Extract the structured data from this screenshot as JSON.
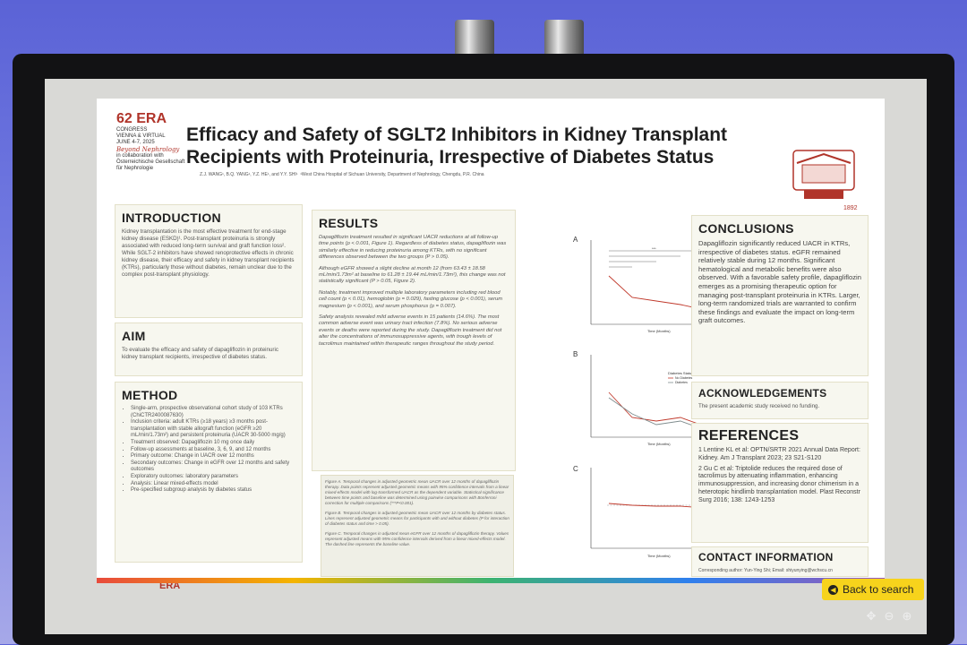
{
  "poster": {
    "logo": {
      "number": "62",
      "line1": "ERA",
      "line2": "CONGRESS",
      "line3": "VIENNA & VIRTUAL",
      "date": "JUNE 4-7, 2025",
      "tagline": "Beyond Nephrology",
      "collab": "in collaboration with",
      "partner": "Österreichische Gesellschaft für Nephrologie"
    },
    "title": "Efficacy and Safety of SGLT2 Inhibitors in Kidney Transplant Recipients with Proteinuria, Irrespective of Diabetes Status",
    "authors": "Z.J. WANG¹, B.Q. YANG¹, Y.Z. HE¹, and Y.Y. SHI¹",
    "affiliation": "¹West China Hospital of Sichuan University, Department of Nephrology, Chengdu, P.R. China",
    "seal_year": "1892",
    "introduction": {
      "heading": "INTRODUCTION",
      "text": "Kidney transplantation is the most effective treatment for end-stage kidney disease (ESKD)¹. Post-transplant proteinuria is strongly associated with reduced long-term survival and graft function loss². While SGLT-2 inhibitors have showed renoprotective effects in chronic kidney disease, their efficacy and safety in kidney transplant recipients (KTRs), particularly those without diabetes, remain unclear due to the complex post-transplant physiology."
    },
    "aim": {
      "heading": "AIM",
      "text": "To evaluate the efficacy and safety of dapagliflozin in proteinuric kidney transplant recipients, irrespective of diabetes status."
    },
    "method": {
      "heading": "METHOD",
      "items": [
        "Single-arm, prospective observational cohort study of 103 KTRs (ChiCTR2400087630)",
        "Inclusion criteria: adult KTRs (≥18 years) ≥3 months post-transplantation with stable allograft function (eGFR ≥20 mL/min/1.73m²) and persistent proteinuria (UACR 30-5000 mg/g)",
        "Treatment observed: Dapagliflozin 10 mg once daily",
        "Follow-up assessments at baseline, 3, 6, 9, and 12 months",
        "Primary outcome: Change in UACR over 12 months",
        "Secondary outcomes: Change in eGFR over 12 months and safety outcomes",
        "Exploratory outcomes: laboratory parameters",
        "Analysis: Linear mixed-effects model",
        "Pre-specified subgroup analysis by diabetes status"
      ]
    },
    "results": {
      "heading": "RESULTS",
      "paragraphs": [
        "Dapagliflozin treatment resulted in significant UACR reductions at all follow-up time points (p < 0.001, Figure 1). Regardless of diabetes status, dapagliflozin was similarly effective in reducing proteinuria among KTRs, with no significant differences observed between the two groups (P > 0.05).",
        "Although eGFR showed a slight decline at month 12 (from 63.43 ± 18.58 mL/min/1.73m² at baseline to 61.28 ± 19.44 mL/min/1.73m²), this change was not statistically significant (P > 0.05, Figure 2).",
        "Notably, treatment improved multiple laboratory parameters including red blood cell count (p < 0.01), hemoglobin (p = 0.029), fasting glucose (p < 0.001), serum magnesium (p < 0.001), and serum phosphorus (p = 0.007).",
        "Safety analysis revealed mild adverse events in 15 patients (14.6%). The most common adverse event was urinary tract infection (7.8%). No serious adverse events or deaths were reported during the study. Dapagliflozin treatment did not alter the concentrations of immunosuppressive agents, with trough levels of tacrolimus maintained within therapeutic ranges throughout the study period."
      ],
      "captions": [
        "Figure A. Temporal changes in adjusted geometric mean UACR over 12 months of dapagliflozin therapy. Data points represent adjusted geometric means with 95% confidence intervals from a linear mixed-effects model with log-transformed UACR as the dependent variable. Statistical significance between time points and baseline was determined using pairwise comparisons with Bonferroni correction for multiple comparisons (***P<0.001).",
        "Figure B. Temporal changes in adjusted geometric mean UACR over 12 months by diabetes status. Lines represent adjusted geometric means for participants with and without diabetes (P for interaction of diabetes status and time > 0.05).",
        "Figure C. Temporal changes in adjusted mean eGFR over 12 months of dapagliflozin therapy. Values represent adjusted means with 95% confidence intervals derived from a linear mixed-effects model. The dashed line represents the baseline value."
      ]
    },
    "charts": {
      "labels": [
        "A",
        "B",
        "C"
      ],
      "xlabel": "Time (Months)",
      "ylabel_a": "Adjusted Geometric Mean UACR (mg/g)",
      "ylabel_b": "Adjusted Geometric Mean UACR (mg/g)",
      "ylabel_c": "Adjusted mean eGFR (mL/min/1.73m²)",
      "sig": "***",
      "legend_title": "Diabetes Status",
      "legend_items": [
        "No Diabetes",
        "Diabetes"
      ],
      "xticks": [
        "0",
        "3",
        "6",
        "9",
        "12"
      ]
    },
    "conclusions": {
      "heading": "CONCLUSIONS",
      "text": "Dapagliflozin significantly reduced UACR in KTRs, irrespective of diabetes status. eGFR remained relatively stable during 12 months. Significant hematological and metabolic benefits were also observed. With a favorable safety profile, dapagliflozin emerges as a promising therapeutic option for managing post-transplant proteinuria in KTRs. Larger, long-term randomized trials are warranted to confirm these findings and evaluate the impact on long-term graft outcomes."
    },
    "acknowledgements": {
      "heading": "ACKNOWLEDGEMENTS",
      "text": "The present academic study received no funding."
    },
    "references": {
      "heading": "REFERENCES",
      "items": [
        "1 Lentine KL et al: OPTN/SRTR 2021 Annual Data Report: Kidney. Am J Transplant 2023; 23 S21-S120",
        "2 Gu C et al: Triptolide reduces the required dose of tacrolimus by attenuating inflammation, enhancing immunosuppression, and increasing donor chimerism in a heterotopic hindlimb transplantation model. Plast Reconstr Surg 2016; 138: 1243-1253"
      ]
    },
    "contact": {
      "heading": "CONTACT INFORMATION",
      "text": "Corresponding author: Yun-Ying Shi; Email: shiyunying@wchscu.cn"
    },
    "footer_logo": "ERA"
  },
  "viewer": {
    "back_label": "Back to search",
    "icons": [
      "move-icon",
      "zoom-out-icon",
      "zoom-in-icon"
    ]
  }
}
